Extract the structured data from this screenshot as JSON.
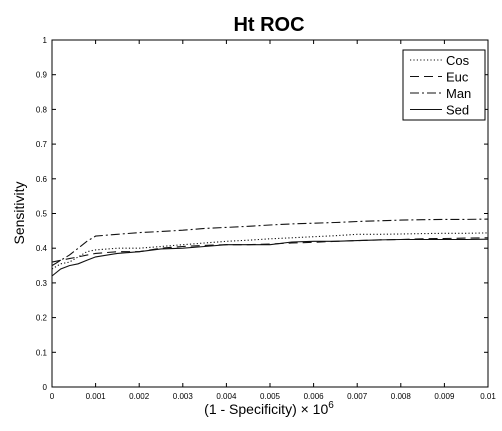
{
  "chart_data": {
    "type": "line",
    "title": "Ht ROC",
    "xlabel": "(1 - Specificity) × 10",
    "xlabel_exponent": "6",
    "ylabel": "Sensitivity",
    "xlim": [
      0,
      0.01
    ],
    "ylim": [
      0,
      1
    ],
    "x_ticks": [
      0,
      0.001,
      0.002,
      0.003,
      0.004,
      0.005,
      0.006,
      0.007,
      0.008,
      0.009,
      0.01
    ],
    "x_tick_labels": [
      "0",
      "0.001",
      "0.002",
      "0.003",
      "0.004",
      "0.005",
      "0.006",
      "0.007",
      "0.008",
      "0.009",
      "0.01"
    ],
    "y_ticks": [
      0,
      0.1,
      0.2,
      0.3,
      0.4,
      0.5,
      0.6,
      0.7,
      0.8,
      0.9,
      1
    ],
    "y_tick_labels": [
      "0",
      "0.1",
      "0.2",
      "0.3",
      "0.4",
      "0.5",
      "0.6",
      "0.7",
      "0.8",
      "0.9",
      "1"
    ],
    "grid": false,
    "legend_position": "top-right",
    "series": [
      {
        "name": "Cos",
        "dash": "dotted",
        "x": [
          0,
          0.0002,
          0.0004,
          0.0006,
          0.0008,
          0.001,
          0.0015,
          0.002,
          0.0025,
          0.003,
          0.0035,
          0.004,
          0.0045,
          0.005,
          0.0055,
          0.006,
          0.0065,
          0.007,
          0.0075,
          0.008,
          0.0085,
          0.009,
          0.0095,
          0.01
        ],
        "y": [
          0.34,
          0.355,
          0.36,
          0.375,
          0.39,
          0.395,
          0.4,
          0.4,
          0.405,
          0.41,
          0.415,
          0.42,
          0.423,
          0.427,
          0.43,
          0.433,
          0.436,
          0.44,
          0.44,
          0.441,
          0.442,
          0.443,
          0.443,
          0.444
        ]
      },
      {
        "name": "Euc",
        "dash": "dashed",
        "x": [
          0,
          0.0002,
          0.0004,
          0.0006,
          0.0008,
          0.001,
          0.0015,
          0.002,
          0.0025,
          0.003,
          0.0035,
          0.004,
          0.0045,
          0.005,
          0.0055,
          0.006,
          0.0065,
          0.007,
          0.0075,
          0.008,
          0.0085,
          0.009,
          0.0095,
          0.01
        ],
        "y": [
          0.36,
          0.365,
          0.37,
          0.375,
          0.38,
          0.385,
          0.39,
          0.39,
          0.4,
          0.405,
          0.408,
          0.41,
          0.41,
          0.412,
          0.415,
          0.417,
          0.42,
          0.422,
          0.424,
          0.425,
          0.427,
          0.428,
          0.429,
          0.43
        ]
      },
      {
        "name": "Man",
        "dash": "dashdot",
        "x": [
          0,
          0.0002,
          0.0004,
          0.0006,
          0.0008,
          0.001,
          0.0015,
          0.002,
          0.0025,
          0.003,
          0.0035,
          0.004,
          0.0045,
          0.005,
          0.0055,
          0.006,
          0.0065,
          0.007,
          0.0075,
          0.008,
          0.0085,
          0.009,
          0.0095,
          0.01
        ],
        "y": [
          0.35,
          0.365,
          0.38,
          0.4,
          0.42,
          0.435,
          0.44,
          0.445,
          0.448,
          0.452,
          0.457,
          0.46,
          0.463,
          0.467,
          0.47,
          0.472,
          0.474,
          0.477,
          0.479,
          0.481,
          0.482,
          0.483,
          0.483,
          0.484
        ]
      },
      {
        "name": "Sed",
        "dash": "solid",
        "x": [
          0,
          0.0002,
          0.0004,
          0.0006,
          0.0008,
          0.001,
          0.0015,
          0.002,
          0.0025,
          0.003,
          0.0035,
          0.004,
          0.0045,
          0.005,
          0.0055,
          0.006,
          0.0065,
          0.007,
          0.0075,
          0.008,
          0.0085,
          0.009,
          0.0095,
          0.01
        ],
        "y": [
          0.32,
          0.34,
          0.35,
          0.355,
          0.365,
          0.375,
          0.385,
          0.39,
          0.398,
          0.4,
          0.405,
          0.41,
          0.41,
          0.41,
          0.418,
          0.42,
          0.42,
          0.422,
          0.424,
          0.425,
          0.425,
          0.425,
          0.425,
          0.426
        ]
      }
    ]
  }
}
